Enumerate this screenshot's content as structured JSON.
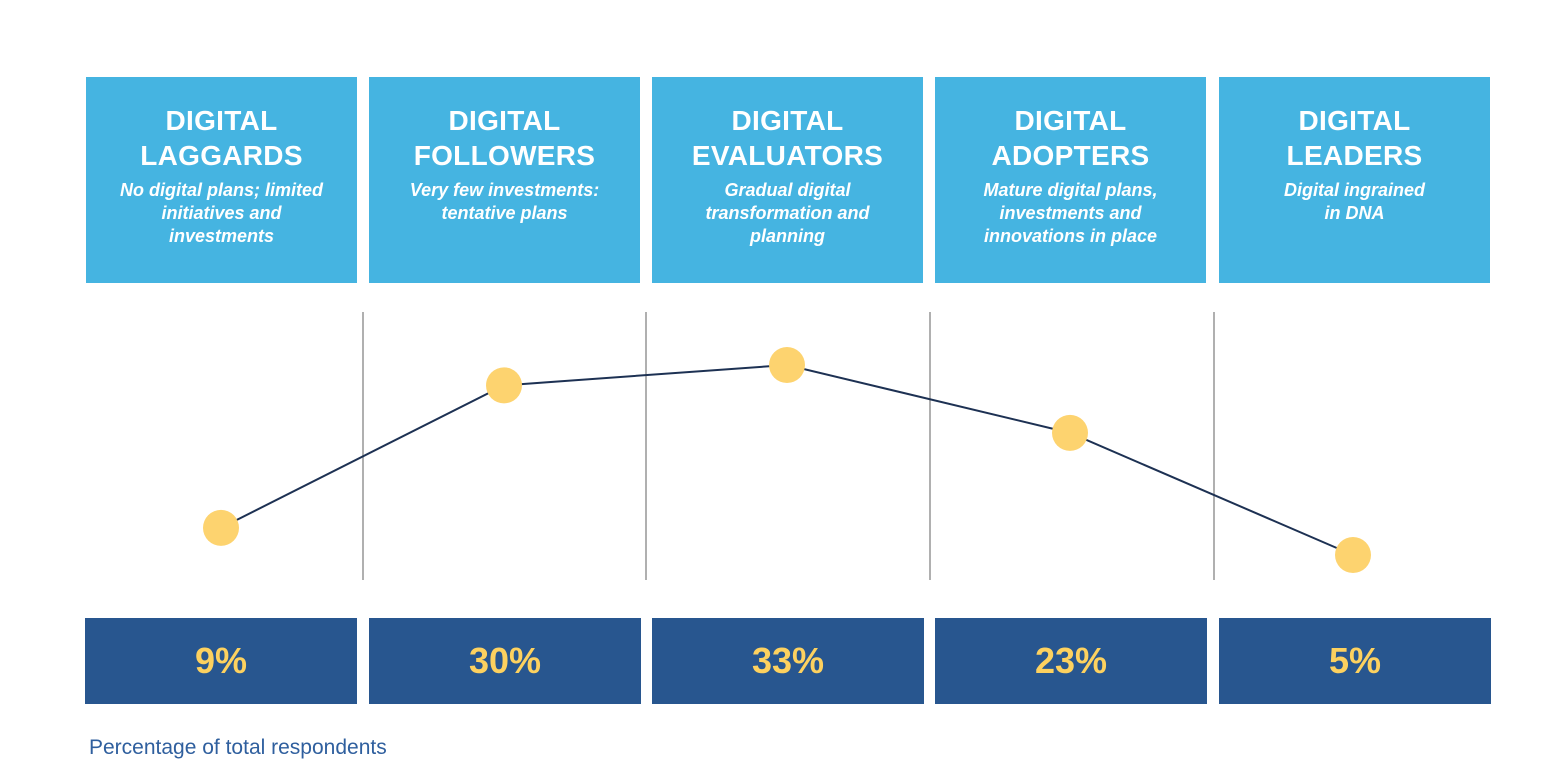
{
  "chart_data": {
    "type": "line",
    "categories": [
      "DIGITAL LAGGARDS",
      "DIGITAL FOLLOWERS",
      "DIGITAL EVALUATORS",
      "DIGITAL ADOPTERS",
      "DIGITAL LEADERS"
    ],
    "values": [
      9,
      30,
      33,
      23,
      5
    ],
    "value_labels": [
      "9%",
      "30%",
      "33%",
      "23%",
      "5%"
    ],
    "stages": [
      {
        "title_lines": [
          "DIGITAL",
          "LAGGARDS"
        ],
        "desc_lines": [
          "No digital plans; limited",
          "initiatives and",
          "investments"
        ]
      },
      {
        "title_lines": [
          "DIGITAL",
          "FOLLOWERS"
        ],
        "desc_lines": [
          "Very few investments:",
          "tentative plans"
        ]
      },
      {
        "title_lines": [
          "DIGITAL",
          "EVALUATORS"
        ],
        "desc_lines": [
          "Gradual digital",
          "transformation and",
          "planning"
        ]
      },
      {
        "title_lines": [
          "DIGITAL",
          "ADOPTERS"
        ],
        "desc_lines": [
          "Mature digital plans,",
          "investments and",
          "innovations in place"
        ]
      },
      {
        "title_lines": [
          "DIGITAL",
          "LEADERS"
        ],
        "desc_lines": [
          "Digital ingrained",
          "in DNA"
        ]
      }
    ],
    "ylim": [
      0,
      35
    ],
    "grid": false,
    "footnote": "Percentage of total respondents"
  },
  "colors": {
    "card_bg": "#45b4e1",
    "value_bg": "#28568f",
    "value_text": "#fdd15f",
    "marker": "#fdd36f",
    "line": "#1d3153",
    "divider": "#b0b0b0",
    "footnote": "#2f5f9e"
  }
}
